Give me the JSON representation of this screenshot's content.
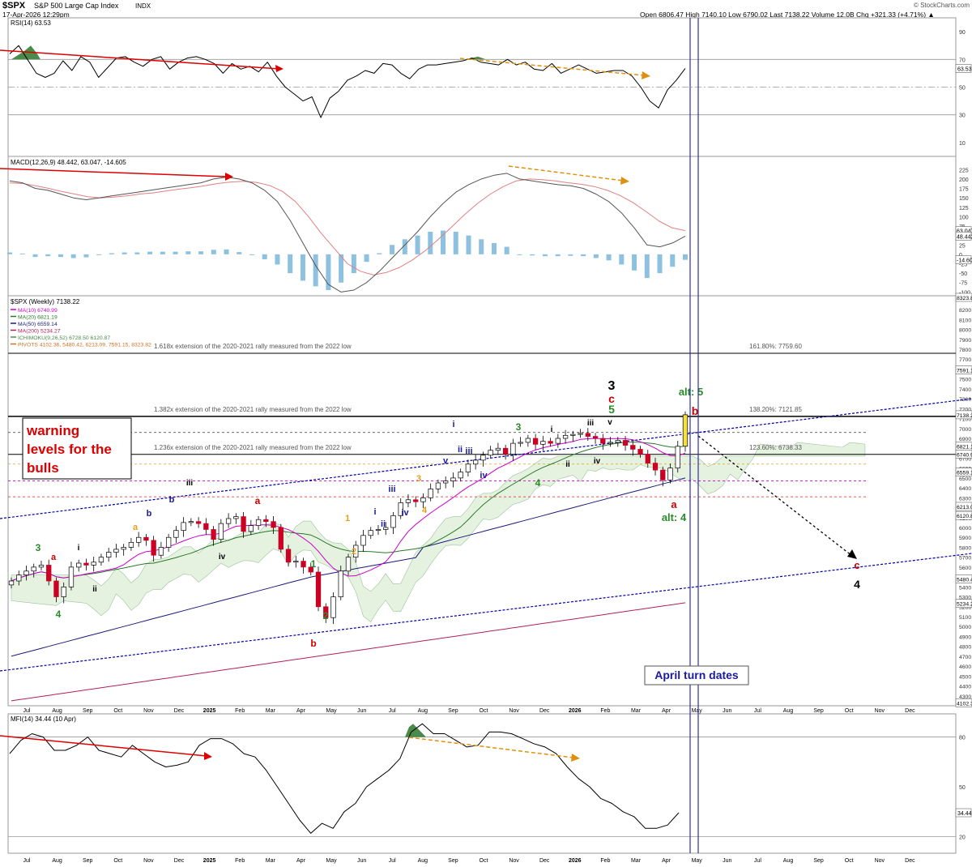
{
  "header": {
    "symbol": "$SPX",
    "name": "S&P 500 Large Cap Index",
    "exchange": "INDX",
    "date": "17-Apr-2026 12:29pm",
    "source": "© StockCharts.com",
    "quote": "Open 6806.47  High 7140.10  Low 6790.02  Last 7138.22  Volume 12.0B  Chg +321.33 (+4.71%) ▲"
  },
  "colors": {
    "bull": "#ffffff",
    "bear": "#cc0022",
    "ma10": "#cc00cc",
    "ma20": "#2a7a2a",
    "ma50": "#1a1a7a",
    "ma200": "#b0205a",
    "cloud": "#e6f2e0",
    "channel": "#0000aa",
    "arrow": "#dd0000",
    "divergence": "#e09010"
  },
  "chart_data": [
    {
      "type": "line",
      "panel": "RSI",
      "title": "RSI(14) 63.53",
      "y_ticks": [
        10,
        30,
        50,
        70,
        90
      ],
      "ylim": [
        0,
        100
      ],
      "last_label": "63.53",
      "reference_lines": [
        30,
        50,
        70
      ],
      "series": [
        {
          "values": [
            74,
            80,
            70,
            60,
            57,
            60,
            69,
            62,
            72,
            68,
            57,
            64,
            71,
            72,
            68,
            65,
            70,
            72,
            63,
            68,
            71,
            72,
            70,
            67,
            60,
            67,
            63,
            65,
            61,
            68,
            58,
            50,
            45,
            40,
            43,
            28,
            42,
            47,
            55,
            58,
            62,
            60,
            67,
            66,
            60,
            56,
            63,
            66,
            66,
            67,
            68,
            69,
            71,
            68,
            67,
            66,
            70,
            66,
            68,
            63,
            62,
            67,
            60,
            63,
            66,
            63,
            60,
            61,
            62,
            62,
            58,
            50,
            40,
            35,
            48,
            55,
            63.5
          ]
        }
      ]
    },
    {
      "type": "line",
      "panel": "MACD",
      "title": "MACD(12,26,9) 48.442, 63.047, -14.605",
      "y_ticks": [
        -100,
        -75,
        -50,
        -25,
        0,
        25,
        50,
        75,
        100,
        125,
        150,
        175,
        200,
        225
      ],
      "ylim": [
        -110,
        245
      ],
      "last_labels": [
        "63.047",
        "48.442",
        "-14.605"
      ],
      "series": [
        {
          "name": "MACD",
          "values": [
            195,
            190,
            175,
            170,
            160,
            150,
            145,
            150,
            155,
            160,
            165,
            170,
            175,
            180,
            185,
            190,
            200,
            205,
            200,
            190,
            170,
            140,
            90,
            30,
            -30,
            -80,
            -100,
            -95,
            -75,
            -45,
            -10,
            25,
            60,
            100,
            135,
            165,
            185,
            200,
            210,
            215,
            200,
            195,
            190,
            185,
            182,
            175,
            160,
            140,
            110,
            70,
            25,
            20,
            30,
            48.4
          ]
        },
        {
          "name": "Signal",
          "values": [
            190,
            188,
            182,
            175,
            167,
            160,
            153,
            150,
            152,
            155,
            160,
            163,
            168,
            173,
            177,
            182,
            188,
            192,
            194,
            191,
            183,
            167,
            140,
            100,
            55,
            15,
            -25,
            -45,
            -55,
            -48,
            -35,
            -15,
            10,
            40,
            72,
            105,
            135,
            160,
            180,
            195,
            200,
            198,
            195,
            190,
            186,
            180,
            170,
            156,
            137,
            113,
            88,
            70,
            63.047
          ]
        },
        {
          "name": "Histogram",
          "values": [
            5,
            2,
            -7,
            -5,
            -7,
            -10,
            -8,
            0,
            3,
            5,
            5,
            7,
            7,
            7,
            8,
            8,
            12,
            13,
            6,
            -1,
            -13,
            -27,
            -50,
            -70,
            -85,
            -95,
            -75,
            -50,
            -20,
            3,
            25,
            40,
            50,
            60,
            63,
            60,
            50,
            40,
            30,
            20,
            0,
            -3,
            -5,
            -5,
            -4,
            -5,
            -10,
            -16,
            -27,
            -43,
            -63,
            -50,
            -33,
            -14.6
          ]
        }
      ]
    },
    {
      "type": "candlestick",
      "panel": "Price",
      "title": "$SPX (Weekly) 7138.22",
      "legend": [
        "MA(10) 6740.99",
        "MA(20) 6821.19",
        "MA(50) 6559.14",
        "MA(200) 5234.27",
        "ICHIMOKU(9,26,52) 6728.50 6120.87",
        "PIVOTS 4102.36, 5480.42, 6213.09, 7591.15, 8323.82"
      ],
      "x_ticks": [
        "Jul",
        "Aug",
        "Sep",
        "Oct",
        "Nov",
        "Dec",
        "2025",
        "Feb",
        "Mar",
        "Apr",
        "May",
        "Jun",
        "Jul",
        "Aug",
        "Sep",
        "Oct",
        "Nov",
        "Dec",
        "2026",
        "Feb",
        "Mar",
        "Apr",
        "May",
        "Jun",
        "Jul",
        "Aug",
        "Sep",
        "Oct",
        "Nov",
        "Dec"
      ],
      "y_ticks": [
        4300,
        4400,
        4500,
        4600,
        4700,
        4800,
        4900,
        5000,
        5100,
        5200,
        5300,
        5400,
        5500,
        5600,
        5700,
        5800,
        5900,
        6000,
        6100,
        6200,
        6300,
        6400,
        6500,
        6600,
        6700,
        6800,
        6900,
        7000,
        7100,
        7200,
        7300,
        7400,
        7500,
        7600,
        7700,
        7800,
        7900,
        8000,
        8100,
        8200
      ],
      "right_labels": [
        "8323.82",
        "7591.15",
        "7138.22",
        "6821.19",
        "6740.99",
        "6559.14",
        "6213.09",
        "6120.87",
        "5480.42",
        "5234.27",
        "4102.36"
      ],
      "ylim": [
        4200,
        8340
      ],
      "closes": [
        5460,
        5520,
        5560,
        5600,
        5620,
        5460,
        5300,
        5400,
        5600,
        5640,
        5620,
        5650,
        5700,
        5750,
        5780,
        5800,
        5850,
        5900,
        5870,
        5720,
        5800,
        5900,
        5970,
        6050,
        6060,
        6040,
        5980,
        5880,
        6040,
        6090,
        6110,
        5960,
        6020,
        6080,
        6060,
        6000,
        5780,
        5650,
        5660,
        5600,
        5550,
        5200,
        5090,
        5300,
        5560,
        5700,
        5820,
        5920,
        5970,
        5980,
        6000,
        6120,
        6250,
        6280,
        6260,
        6300,
        6390,
        6450,
        6470,
        6500,
        6560,
        6640,
        6680,
        6730,
        6780,
        6800,
        6740,
        6850,
        6860,
        6900,
        6840,
        6870,
        6850,
        6900,
        6930,
        6940,
        6950,
        6920,
        6900,
        6850,
        6860,
        6880,
        6830,
        6790,
        6740,
        6650,
        6580,
        6480,
        6600,
        6820,
        7138.22
      ],
      "levels": [
        {
          "label": "1.618x extension of the 2020-2021 rally measured from the 2022 low",
          "value": 7759.6,
          "right_text": "161.80%: 7759.60"
        },
        {
          "label": "1.382x extension of the 2020-2021 rally measured from the 2022 low",
          "value": 7121.85,
          "right_text": "138.20%: 7121.85"
        },
        {
          "label": "1.236x extension of the 2020-2021 rally measured from the 2022 low",
          "value": 6738.33,
          "right_text": "123.60%: 6738.33"
        }
      ],
      "annotations": {
        "warning": "warning levels for the bulls",
        "turn": "April turn dates",
        "wave_labels": [
          "3",
          "i",
          "ii",
          "4",
          "a",
          "b",
          "iii",
          "iv",
          "b",
          "a",
          "a",
          "b",
          "1",
          "2",
          "1",
          "2",
          "i",
          "ii",
          "iii",
          "iv",
          "3",
          "4",
          "v",
          "i",
          "ii",
          "iii",
          "iv",
          "3",
          "4",
          "i",
          "ii",
          "iii",
          "iv",
          "v",
          "3",
          "c",
          "5",
          "alt: 5",
          "b",
          "a",
          "alt: 4",
          "c",
          "4"
        ]
      }
    },
    {
      "type": "line",
      "panel": "MFI",
      "title": "MFI(14) 34.44 (10 Apr)",
      "y_ticks": [
        20,
        50,
        80
      ],
      "ylim": [
        10,
        92
      ],
      "last_label": "34.44",
      "reference_lines": [
        20,
        80
      ],
      "series": [
        {
          "values": [
            70,
            78,
            82,
            80,
            72,
            72,
            75,
            80,
            72,
            70,
            68,
            75,
            70,
            65,
            62,
            63,
            65,
            75,
            79,
            79,
            76,
            70,
            68,
            60,
            50,
            40,
            30,
            22,
            28,
            25,
            35,
            40,
            50,
            55,
            60,
            67,
            83,
            88,
            82,
            82,
            78,
            74,
            75,
            83,
            83,
            82,
            79,
            76,
            74,
            70,
            62,
            55,
            50,
            43,
            40,
            35,
            32,
            25,
            25,
            27,
            34.4
          ]
        }
      ]
    }
  ]
}
